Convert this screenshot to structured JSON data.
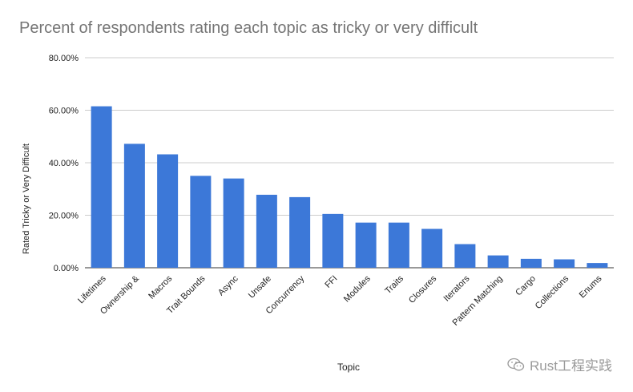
{
  "chart_data": {
    "type": "bar",
    "title": "Percent of respondents rating each topic as tricky or very difficult",
    "xlabel": "Topic",
    "ylabel": "Rated Tricky or Very Difficult",
    "ylim": [
      0,
      80
    ],
    "yticks": [
      "0.00%",
      "20.00%",
      "40.00%",
      "60.00%",
      "80.00%"
    ],
    "grid": true,
    "legend": "none",
    "bar_color": "#3c78d8",
    "categories": [
      "Lifetimes",
      "Ownership &",
      "Macros",
      "Trait Bounds",
      "Async",
      "Unsafe",
      "Concurrency",
      "FFI",
      "Modules",
      "Traits",
      "Closures",
      "Iterators",
      "Pattern Matching",
      "Cargo",
      "Collections",
      "Enums"
    ],
    "values": [
      61.5,
      47.2,
      43.2,
      35.0,
      34.0,
      27.8,
      26.9,
      20.5,
      17.2,
      17.2,
      14.8,
      9.0,
      4.7,
      3.4,
      3.2,
      1.8
    ]
  },
  "watermark": {
    "text": "Rust工程实践",
    "icon": "wechat-icon"
  }
}
